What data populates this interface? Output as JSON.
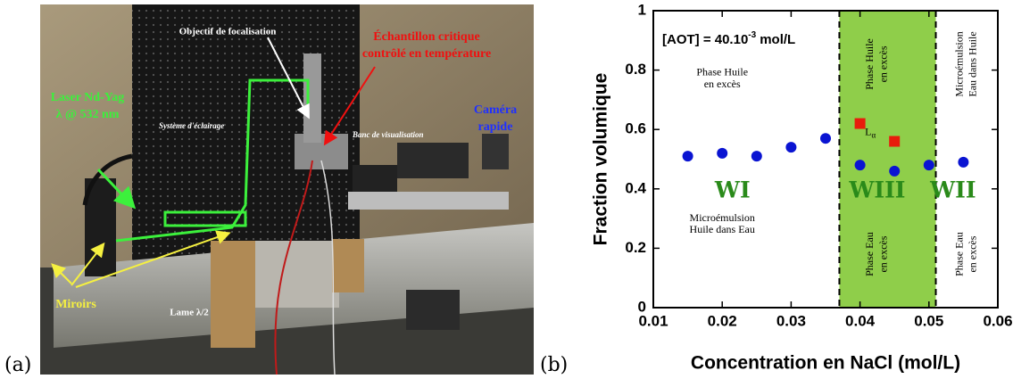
{
  "figure": {
    "panel_a": {
      "label": "(a)",
      "annotations": [
        "Objectif de focalisation",
        "Échantillon critique",
        "contrôlé en température",
        "Laser Nd-Yag",
        "λ @ 532 nm",
        "Caméra",
        "rapide",
        "Système d'éclairage",
        "Banc de visualisation",
        "Miroirs",
        "Lame λ/2"
      ]
    },
    "panel_b": {
      "label": "(b)"
    }
  },
  "chart_data": {
    "type": "scatter",
    "x_label": "Concentration en NaCl (mol/L)",
    "y_label": "Fraction volumique",
    "xlim": [
      0.01,
      0.06
    ],
    "xticks": [
      0.01,
      0.02,
      0.03,
      0.04,
      0.05,
      0.06
    ],
    "ylim": [
      0,
      1
    ],
    "yticks": [
      0,
      0.2,
      0.4,
      0.6,
      0.8,
      1
    ],
    "shaded_region": {
      "x": [
        0.037,
        0.051
      ],
      "color": "#8fce4a"
    },
    "series": [
      {
        "color": "#0a14d2",
        "marker": "circle",
        "x": [
          0.015,
          0.02,
          0.025,
          0.03,
          0.035,
          0.04,
          0.045,
          0.05,
          0.055
        ],
        "values": [
          0.51,
          0.52,
          0.51,
          0.54,
          0.57,
          0.48,
          0.46,
          0.48,
          0.49
        ]
      },
      {
        "color": "#e81c0c",
        "marker": "square",
        "x": [
          0.04,
          0.045
        ],
        "values": [
          0.62,
          0.56
        ]
      }
    ],
    "concentration_note": {
      "text": "[AOT] = 40.10",
      "exponent": "-3",
      "unit": "mol/L"
    },
    "phase_labels": [
      "WI",
      "WIII",
      "WII"
    ],
    "region_notes": [
      "Phase Huile",
      "en excès",
      "Microémulsion",
      "Huile dans Eau",
      "Phase Huile",
      "en excès",
      "Phase Eau",
      "en excès",
      "Microémulsion",
      "Eau dans Huile",
      "Phase Eau",
      "en excès"
    ],
    "lamellar": {
      "text": "L",
      "subscript": "α"
    }
  }
}
